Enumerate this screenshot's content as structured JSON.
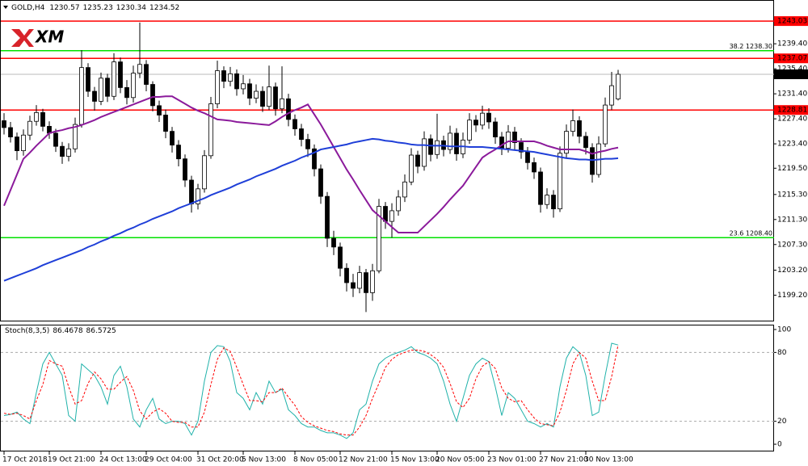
{
  "header": {
    "symbol": "GOLD,H4"
  },
  "logo": "XM",
  "chart_data": [
    {
      "type": "candlestick",
      "x": [
        "17 Oct 2018",
        null,
        null,
        null,
        null,
        null,
        null,
        "19 Oct 21:00",
        null,
        null,
        null,
        null,
        null,
        null,
        null,
        "24 Oct 13:00",
        null,
        null,
        null,
        null,
        null,
        null,
        "29 Oct 04:00",
        null,
        null,
        null,
        null,
        null,
        null,
        null,
        "31 Oct 20:00",
        null,
        null,
        null,
        null,
        null,
        null,
        "5 Nov 13:00",
        null,
        null,
        null,
        null,
        null,
        null,
        null,
        "8 Nov 05:00",
        null,
        null,
        null,
        null,
        null,
        null,
        "12 Nov 21:00",
        null,
        null,
        null,
        null,
        null,
        null,
        null,
        "15 Nov 13:00",
        null,
        null,
        null,
        null,
        null,
        null,
        "20 Nov 05:00",
        null,
        null,
        null,
        null,
        null,
        null,
        null,
        "23 Nov 01:00",
        null,
        null,
        null,
        null,
        null,
        null,
        null,
        "27 Nov 21:00",
        null,
        null,
        null,
        null,
        null,
        null,
        "30 Nov 13:00",
        null,
        null,
        null,
        null,
        null
      ],
      "open": [
        1227.1,
        1226.0,
        1224.5,
        1222.3,
        1224.8,
        1227.0,
        1228.4,
        1226.2,
        1225.1,
        1223.0,
        1221.4,
        1222.6,
        1226.5,
        1235.6,
        1231.8,
        1230.2,
        1233.9,
        1231.0,
        1236.5,
        1232.4,
        1230.8,
        1234.7,
        1236.1,
        1232.9,
        1229.5,
        1228.0,
        1225.4,
        1223.2,
        1221.0,
        1217.6,
        1213.8,
        1216.2,
        1221.5,
        1229.8,
        1235.1,
        1233.4,
        1234.6,
        1232.2,
        1233.0,
        1230.7,
        1231.8,
        1229.4,
        1232.5,
        1229.0,
        1230.6,
        1227.3,
        1225.8,
        1224.1,
        1222.6,
        1219.4,
        1215.0,
        1208.3,
        1206.9,
        1203.5,
        1201.2,
        1200.3,
        1202.8,
        1199.6,
        1203.1,
        1213.4,
        1211.0,
        1212.7,
        1214.9,
        1217.3,
        1221.6,
        1219.8,
        1224.2,
        1221.7,
        1223.9,
        1222.5,
        1225.1,
        1221.8,
        1224.0,
        1227.2,
        1226.4,
        1228.3,
        1226.9,
        1224.5,
        1222.7,
        1225.3,
        1223.6,
        1222.1,
        1220.4,
        1218.9,
        1213.7,
        1215.2,
        1213.0,
        1221.9,
        1225.4,
        1227.1,
        1224.6,
        1222.8,
        1218.5,
        1223.4,
        1229.6,
        1230.57
      ],
      "high": [
        1228.3,
        1226.9,
        1225.2,
        1225.7,
        1227.9,
        1229.6,
        1229.0,
        1227.0,
        1225.8,
        1223.7,
        1223.5,
        1227.6,
        1238.4,
        1236.3,
        1232.5,
        1234.8,
        1234.6,
        1237.9,
        1237.2,
        1233.6,
        1235.9,
        1242.8,
        1236.8,
        1233.4,
        1230.3,
        1228.9,
        1226.1,
        1224.0,
        1221.7,
        1218.3,
        1217.0,
        1222.4,
        1230.9,
        1236.7,
        1235.8,
        1235.7,
        1235.3,
        1234.4,
        1233.8,
        1232.9,
        1232.6,
        1235.9,
        1233.2,
        1235.8,
        1231.4,
        1228.1,
        1226.6,
        1225.0,
        1223.3,
        1220.1,
        1215.7,
        1209.5,
        1207.6,
        1204.3,
        1202.6,
        1203.9,
        1203.4,
        1204.2,
        1214.6,
        1214.1,
        1213.9,
        1216.0,
        1218.5,
        1222.7,
        1222.3,
        1225.4,
        1224.9,
        1228.2,
        1224.7,
        1226.3,
        1225.9,
        1225.2,
        1228.3,
        1228.0,
        1229.5,
        1229.1,
        1227.6,
        1225.3,
        1226.4,
        1226.1,
        1224.3,
        1222.9,
        1221.2,
        1219.6,
        1216.3,
        1216.0,
        1223.0,
        1226.5,
        1228.9,
        1227.8,
        1225.3,
        1223.5,
        1224.6,
        1230.8,
        1234.9,
        1235.23
      ],
      "low": [
        1224.9,
        1223.6,
        1220.8,
        1221.5,
        1224.0,
        1226.3,
        1225.4,
        1224.2,
        1222.1,
        1220.2,
        1220.6,
        1222.0,
        1226.0,
        1230.9,
        1228.7,
        1229.6,
        1230.1,
        1230.4,
        1231.5,
        1229.7,
        1230.0,
        1233.9,
        1231.8,
        1228.6,
        1226.9,
        1224.3,
        1222.0,
        1219.8,
        1216.5,
        1212.4,
        1212.9,
        1215.6,
        1221.0,
        1229.1,
        1232.3,
        1232.6,
        1231.1,
        1231.3,
        1229.6,
        1229.9,
        1228.5,
        1228.8,
        1227.9,
        1228.3,
        1226.2,
        1224.7,
        1223.0,
        1221.3,
        1218.2,
        1213.8,
        1206.9,
        1205.6,
        1202.2,
        1199.8,
        1198.9,
        1199.5,
        1196.5,
        1198.3,
        1202.7,
        1209.8,
        1208.4,
        1211.9,
        1214.1,
        1216.8,
        1218.7,
        1219.1,
        1220.6,
        1221.0,
        1221.4,
        1221.8,
        1220.7,
        1221.1,
        1223.4,
        1225.3,
        1225.7,
        1225.8,
        1223.4,
        1221.6,
        1222.0,
        1222.5,
        1221.0,
        1219.3,
        1217.8,
        1212.4,
        1213.0,
        1211.6,
        1212.5,
        1221.2,
        1224.6,
        1223.5,
        1221.7,
        1217.2,
        1218.0,
        1222.9,
        1228.8,
        1230.34
      ],
      "close": [
        1226.0,
        1224.5,
        1222.3,
        1224.8,
        1227.0,
        1228.4,
        1226.2,
        1225.1,
        1223.0,
        1221.4,
        1222.6,
        1226.5,
        1235.6,
        1231.8,
        1230.2,
        1233.9,
        1231.0,
        1236.5,
        1232.4,
        1230.8,
        1234.7,
        1236.1,
        1232.9,
        1229.5,
        1228.0,
        1225.4,
        1223.2,
        1221.0,
        1217.6,
        1213.8,
        1216.2,
        1221.5,
        1229.8,
        1235.1,
        1233.4,
        1234.6,
        1232.2,
        1233.0,
        1230.7,
        1231.8,
        1229.4,
        1232.5,
        1229.0,
        1230.6,
        1227.3,
        1225.8,
        1224.1,
        1222.6,
        1219.4,
        1215.0,
        1208.3,
        1206.9,
        1203.5,
        1201.2,
        1200.3,
        1202.8,
        1199.6,
        1203.1,
        1213.4,
        1211.0,
        1212.7,
        1214.9,
        1217.3,
        1221.6,
        1219.8,
        1224.2,
        1221.7,
        1223.9,
        1222.5,
        1225.1,
        1221.8,
        1224.0,
        1227.2,
        1226.4,
        1228.3,
        1226.9,
        1224.5,
        1222.7,
        1225.3,
        1223.6,
        1222.1,
        1220.4,
        1218.9,
        1213.7,
        1215.2,
        1213.0,
        1221.9,
        1225.4,
        1227.1,
        1224.6,
        1222.8,
        1218.5,
        1223.4,
        1229.6,
        1232.7,
        1234.52
      ],
      "bull_color": "#ffffff",
      "bear_color": "#000000",
      "last_price_color": "#000000",
      "ma": [
        {
          "color": "#8b1a9b",
          "values": [
            1213.5,
            1216.0,
            1218.5,
            1221.0,
            1222.0,
            1223.1,
            1224.1,
            1225.1,
            1225.4,
            1225.6,
            1225.9,
            1226.1,
            1226.4,
            1226.8,
            1227.2,
            1227.7,
            1228.1,
            1228.5,
            1228.9,
            1229.3,
            1229.7,
            1230.1,
            1230.5,
            1230.9,
            1230.9,
            1231.0,
            1231.0,
            1230.4,
            1229.8,
            1229.2,
            1228.7,
            1228.3,
            1227.8,
            1227.3,
            1227.2,
            1227.1,
            1226.9,
            1226.8,
            1226.7,
            1226.6,
            1226.5,
            1226.4,
            1227.0,
            1227.7,
            1228.3,
            1228.8,
            1229.2,
            1229.7,
            1228.1,
            1226.5,
            1224.7,
            1222.9,
            1221.1,
            1219.3,
            1217.7,
            1216.0,
            1214.4,
            1212.8,
            1211.9,
            1211.0,
            1210.1,
            1209.2,
            1209.2,
            1209.2,
            1209.2,
            1210.2,
            1211.2,
            1212.2,
            1213.3,
            1214.5,
            1215.6,
            1216.7,
            1218.2,
            1219.7,
            1221.2,
            1221.9,
            1222.5,
            1223.2,
            1223.8,
            1223.8,
            1223.8,
            1223.8,
            1223.8,
            1223.5,
            1223.1,
            1222.8,
            1222.5,
            1222.5,
            1222.5,
            1222.5,
            1222.2,
            1221.8,
            1222.1,
            1222.3,
            1222.6,
            1222.8
          ]
        },
        {
          "color": "#1f3fd8",
          "values": [
            1201.5,
            1201.9,
            1202.3,
            1202.7,
            1203.1,
            1203.5,
            1204.0,
            1204.4,
            1204.8,
            1205.2,
            1205.6,
            1206.0,
            1206.4,
            1206.9,
            1207.3,
            1207.8,
            1208.2,
            1208.7,
            1209.1,
            1209.6,
            1210.0,
            1210.5,
            1210.9,
            1211.4,
            1211.8,
            1212.2,
            1212.6,
            1213.1,
            1213.5,
            1213.9,
            1214.3,
            1214.7,
            1215.2,
            1215.6,
            1216.0,
            1216.4,
            1216.9,
            1217.3,
            1217.7,
            1218.2,
            1218.6,
            1219.0,
            1219.4,
            1219.9,
            1220.3,
            1220.7,
            1221.2,
            1221.6,
            1222.0,
            1222.5,
            1222.7,
            1222.9,
            1223.1,
            1223.3,
            1223.6,
            1223.8,
            1224.0,
            1224.2,
            1224.1,
            1223.9,
            1223.8,
            1223.6,
            1223.5,
            1223.3,
            1223.2,
            1223.2,
            1223.1,
            1223.1,
            1223.1,
            1223.0,
            1223.0,
            1223.0,
            1222.9,
            1222.9,
            1222.9,
            1222.8,
            1222.7,
            1222.6,
            1222.5,
            1222.4,
            1222.3,
            1222.2,
            1222.1,
            1221.9,
            1221.7,
            1221.5,
            1221.3,
            1221.1,
            1221.0,
            1220.9,
            1220.9,
            1220.8,
            1220.9,
            1221.0,
            1221.0,
            1221.1
          ]
        }
      ],
      "levels": [
        {
          "value": 1243.03,
          "color": "#ff0000"
        },
        {
          "value": 1237.07,
          "color": "#ff0000"
        },
        {
          "value": 1228.81,
          "color": "#ff0000"
        }
      ],
      "fib": [
        {
          "value": 1238.3,
          "label": "38.2 1238.30",
          "color": "#00e000"
        },
        {
          "value": 1208.4,
          "label": "23.6 1208.40",
          "color": "#00e000"
        }
      ],
      "ylim": [
        1195.0,
        1246.4
      ],
      "yticks": [
        {
          "value": 1239.4,
          "label": "1239.40"
        },
        {
          "value": 1235.4,
          "label": "1235.40"
        },
        {
          "value": 1231.4,
          "label": "1231.40"
        },
        {
          "value": 1227.4,
          "label": "1227.40"
        },
        {
          "value": 1223.4,
          "label": "1223.40"
        },
        {
          "value": 1219.5,
          "label": "1219.50"
        },
        {
          "value": 1215.3,
          "label": "1215.30"
        },
        {
          "value": 1211.3,
          "label": "1211.30"
        },
        {
          "value": 1207.3,
          "label": "1207.30"
        },
        {
          "value": 1203.2,
          "label": "1203.20"
        },
        {
          "value": 1199.2,
          "label": "1199.20"
        }
      ]
    },
    {
      "type": "line",
      "title": "Stoch(8,3,5)",
      "series": [
        {
          "color": "#20b2aa",
          "dash": false,
          "values": [
            25,
            26,
            28,
            22,
            18,
            45,
            70,
            80,
            70,
            60,
            25,
            20,
            70,
            65,
            60,
            50,
            35,
            60,
            68,
            50,
            22,
            15,
            30,
            40,
            22,
            18,
            20,
            20,
            18,
            8,
            20,
            55,
            80,
            86,
            85,
            72,
            45,
            40,
            30,
            45,
            35,
            55,
            45,
            48,
            30,
            25,
            18,
            15,
            15,
            12,
            10,
            10,
            8,
            5,
            10,
            30,
            35,
            55,
            70,
            75,
            78,
            80,
            82,
            85,
            80,
            78,
            75,
            70,
            55,
            35,
            20,
            40,
            60,
            70,
            75,
            72,
            50,
            25,
            45,
            40,
            30,
            20,
            18,
            15,
            18,
            15,
            50,
            75,
            85,
            80,
            60,
            25,
            28,
            60,
            88,
            86.4678
          ]
        },
        {
          "color": "#ff0000",
          "dash": true,
          "values": [
            27,
            26,
            27,
            25,
            22,
            38,
            52,
            73,
            70,
            68,
            50,
            35,
            38,
            53,
            63,
            57,
            48,
            48,
            54,
            59,
            47,
            29,
            22,
            28,
            31,
            27,
            20,
            19,
            19,
            15,
            15,
            28,
            52,
            74,
            84,
            81,
            67,
            52,
            38,
            38,
            37,
            45,
            45,
            49,
            41,
            34,
            24,
            19,
            16,
            14,
            12,
            11,
            9,
            8,
            8,
            15,
            25,
            40,
            53,
            67,
            74,
            78,
            80,
            82,
            82,
            81,
            78,
            74,
            67,
            53,
            37,
            32,
            40,
            57,
            68,
            72,
            66,
            49,
            40,
            37,
            38,
            30,
            23,
            18,
            17,
            16,
            28,
            47,
            70,
            80,
            75,
            55,
            38,
            38,
            59,
            86.5725
          ]
        }
      ],
      "levels": [
        20,
        80
      ],
      "ylim": [
        -6.3,
        103.5
      ],
      "yticks": [
        0,
        20,
        80,
        100
      ]
    }
  ]
}
